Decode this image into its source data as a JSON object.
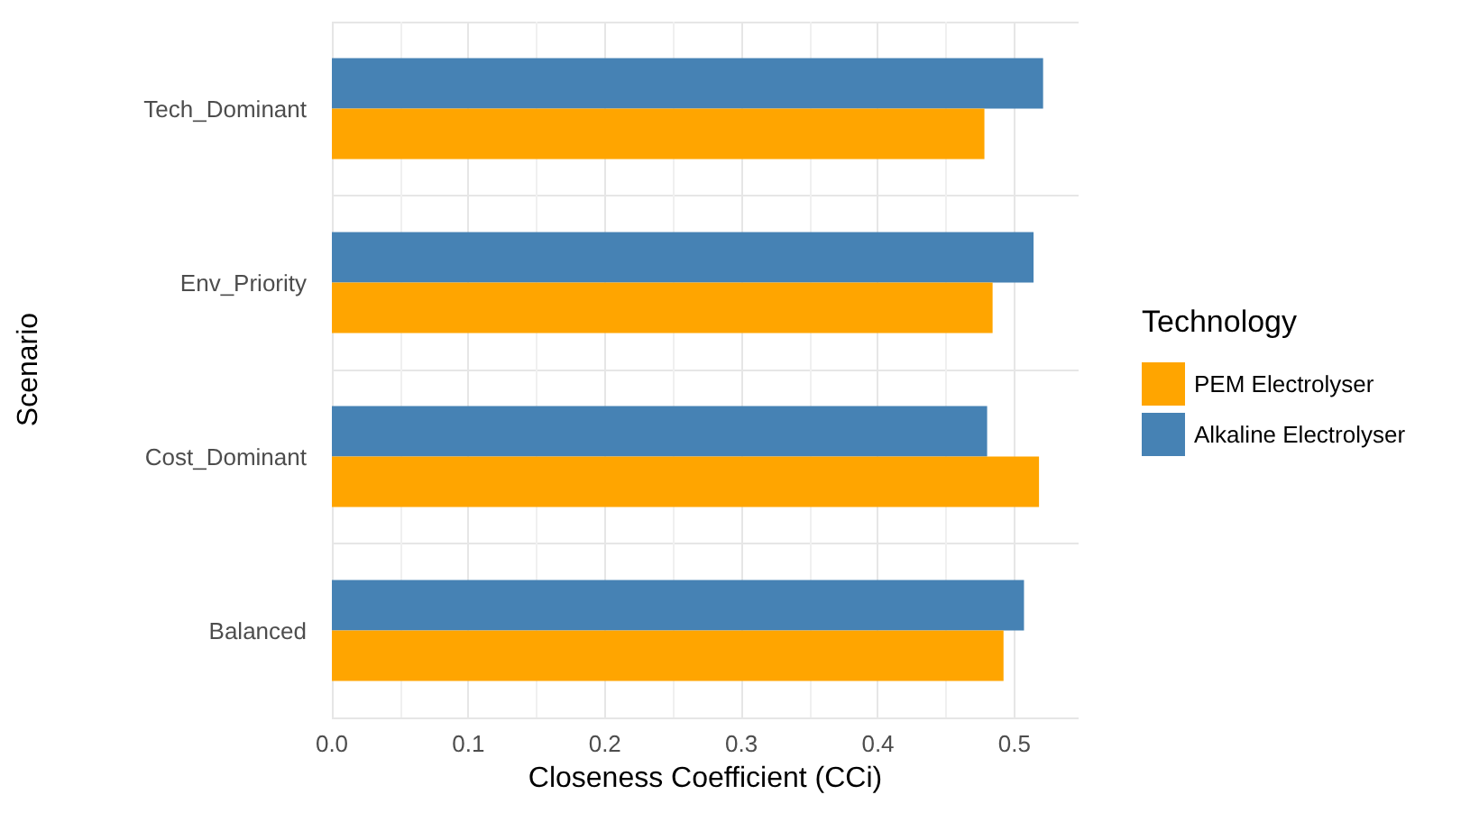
{
  "chart_data": {
    "type": "bar",
    "orientation": "horizontal",
    "xlabel": "Closeness Coefficient (CCi)",
    "ylabel": "Scenario",
    "legend_title": "Technology",
    "categories": [
      "Tech_Dominant",
      "Env_Priority",
      "Cost_Dominant",
      "Balanced"
    ],
    "series": [
      {
        "name": "PEM Electrolyser",
        "color": "#ffa500",
        "values": [
          0.478,
          0.484,
          0.518,
          0.492
        ]
      },
      {
        "name": "Alkaline Electrolyser",
        "color": "#4682b4",
        "values": [
          0.521,
          0.514,
          0.48,
          0.507
        ]
      }
    ],
    "xlim": [
      0,
      0.547
    ],
    "xticks": [
      {
        "value": 0,
        "label": "0.0"
      },
      {
        "value": 0.1,
        "label": "0.1"
      },
      {
        "value": 0.2,
        "label": "0.2"
      },
      {
        "value": 0.3,
        "label": "0.3"
      },
      {
        "value": 0.4,
        "label": "0.4"
      },
      {
        "value": 0.5,
        "label": "0.5"
      }
    ],
    "grid": true,
    "legend": "right"
  }
}
